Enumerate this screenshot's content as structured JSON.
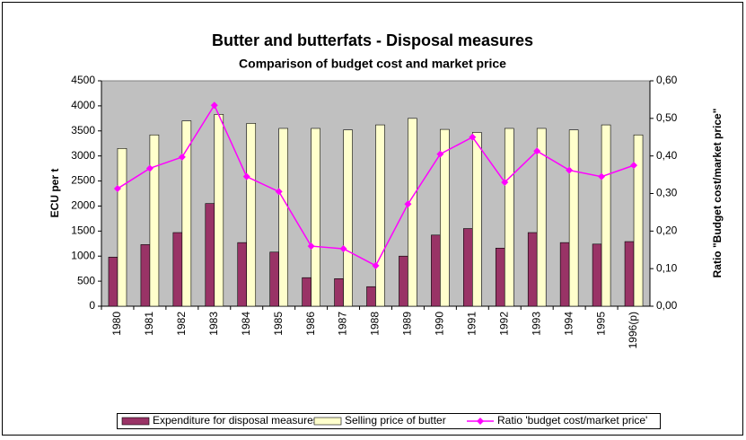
{
  "chart_data": {
    "type": "bar-line",
    "title": "Butter and butterfats - Disposal measures",
    "subtitle": "Comparison of budget cost and market price",
    "y_label": "ECU per t",
    "y2_label": "Ratio \"Budget cost/market price\"",
    "categories": [
      "1980",
      "1981",
      "1982",
      "1983",
      "1984",
      "1985",
      "1986",
      "1987",
      "1988",
      "1989",
      "1990",
      "1991",
      "1992",
      "1993",
      "1994",
      "1995",
      "1996(p)"
    ],
    "series": [
      {
        "name": "Expenditure for disposal measures",
        "type": "bar",
        "color": "#993366",
        "values": [
          980,
          1230,
          1470,
          2050,
          1270,
          1080,
          570,
          550,
          390,
          1000,
          1420,
          1550,
          1160,
          1470,
          1270,
          1240,
          1290
        ]
      },
      {
        "name": "Selling price of butter",
        "type": "bar",
        "color": "#ffffcc",
        "values": [
          3150,
          3420,
          3700,
          3830,
          3650,
          3550,
          3550,
          3520,
          3620,
          3750,
          3530,
          3470,
          3550,
          3550,
          3520,
          3620,
          3420
        ]
      },
      {
        "name": "Ratio 'budget cost/market price'",
        "type": "line",
        "axis": "y2",
        "color": "#ff00ff",
        "values": [
          0.313,
          0.367,
          0.397,
          0.535,
          0.345,
          0.305,
          0.16,
          0.153,
          0.108,
          0.272,
          0.405,
          0.45,
          0.33,
          0.413,
          0.362,
          0.345,
          0.375
        ]
      }
    ],
    "ylim": [
      0,
      4500
    ],
    "yticks": [
      0,
      500,
      1000,
      1500,
      2000,
      2500,
      3000,
      3500,
      4000,
      4500
    ],
    "y2lim": [
      0,
      0.6
    ],
    "y2ticks": [
      {
        "value": 0,
        "label": "0,00"
      },
      {
        "value": 0.1,
        "label": "0,10"
      },
      {
        "value": 0.2,
        "label": "0,20"
      },
      {
        "value": 0.3,
        "label": "0,30"
      },
      {
        "value": 0.4,
        "label": "0,40"
      },
      {
        "value": 0.5,
        "label": "0,50"
      },
      {
        "value": 0.6,
        "label": "0,60"
      }
    ],
    "grid": false,
    "legend": "bottom"
  }
}
